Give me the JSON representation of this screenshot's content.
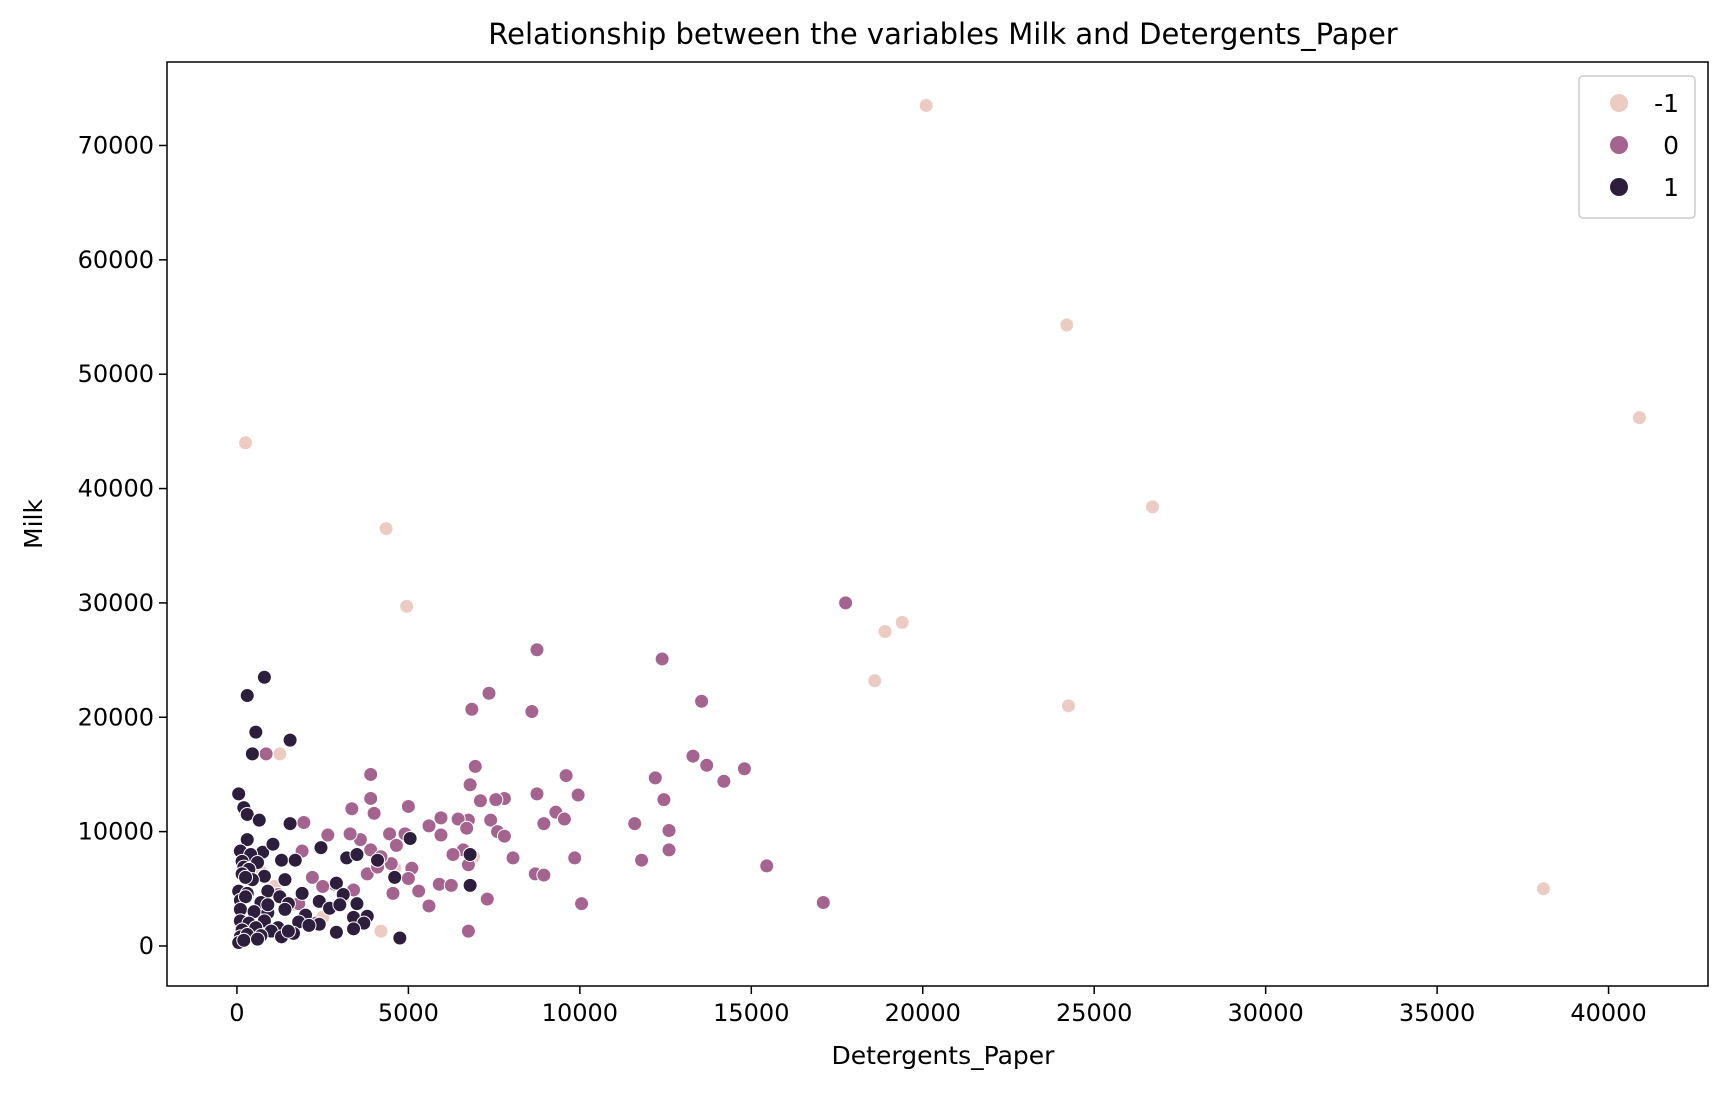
{
  "chart_data": {
    "type": "scatter",
    "title": "Relationship between the variables Milk and Detergents_Paper",
    "xlabel": "Detergents_Paper",
    "ylabel": "Milk",
    "xlim": [
      -2040,
      42900
    ],
    "ylim": [
      -3500,
      77300
    ],
    "xticks": [
      0,
      5000,
      10000,
      15000,
      20000,
      25000,
      30000,
      35000,
      40000
    ],
    "yticks": [
      0,
      10000,
      20000,
      30000,
      40000,
      50000,
      60000,
      70000
    ],
    "grid": false,
    "legend": {
      "placement": "top-right",
      "entries": [
        {
          "label": "-1",
          "color": "#ebcbc2"
        },
        {
          "label": "0",
          "color": "#a5648f"
        },
        {
          "label": "1",
          "color": "#2d1e3e"
        }
      ]
    },
    "series": [
      {
        "name": "-1",
        "color": "#ebcbc2",
        "points": [
          [
            20100,
            73500
          ],
          [
            24200,
            54300
          ],
          [
            40900,
            46200
          ],
          [
            250,
            44000
          ],
          [
            26700,
            38400
          ],
          [
            4350,
            36500
          ],
          [
            4950,
            29700
          ],
          [
            19400,
            28300
          ],
          [
            18900,
            27500
          ],
          [
            18600,
            23200
          ],
          [
            24250,
            21000
          ],
          [
            1250,
            16800
          ],
          [
            38100,
            5000
          ],
          [
            4200,
            1300
          ],
          [
            850,
            16700
          ],
          [
            700,
            6500
          ],
          [
            1100,
            5200
          ],
          [
            3100,
            4300
          ],
          [
            6900,
            7800
          ],
          [
            4600,
            6800
          ],
          [
            2500,
            2500
          ],
          [
            1700,
            3600
          ]
        ]
      },
      {
        "name": "0",
        "color": "#a5648f",
        "points": [
          [
            17750,
            30000
          ],
          [
            8750,
            25900
          ],
          [
            12400,
            25100
          ],
          [
            7350,
            22100
          ],
          [
            13550,
            21400
          ],
          [
            6850,
            20700
          ],
          [
            8600,
            20500
          ],
          [
            850,
            16800
          ],
          [
            13300,
            16600
          ],
          [
            13700,
            15800
          ],
          [
            6950,
            15700
          ],
          [
            14800,
            15500
          ],
          [
            3900,
            15000
          ],
          [
            9600,
            14900
          ],
          [
            12200,
            14700
          ],
          [
            14200,
            14400
          ],
          [
            6800,
            14100
          ],
          [
            8750,
            13300
          ],
          [
            9950,
            13200
          ],
          [
            3900,
            12900
          ],
          [
            7800,
            12900
          ],
          [
            12450,
            12800
          ],
          [
            7550,
            12800
          ],
          [
            7100,
            12700
          ],
          [
            5000,
            12200
          ],
          [
            3350,
            12000
          ],
          [
            9300,
            11700
          ],
          [
            4000,
            11600
          ],
          [
            6750,
            11000
          ],
          [
            7400,
            11000
          ],
          [
            9550,
            11100
          ],
          [
            5950,
            11200
          ],
          [
            6450,
            11100
          ],
          [
            11600,
            10700
          ],
          [
            8950,
            10700
          ],
          [
            1950,
            10800
          ],
          [
            7600,
            10000
          ],
          [
            12600,
            10100
          ],
          [
            5600,
            10500
          ],
          [
            6700,
            10300
          ],
          [
            2650,
            9700
          ],
          [
            3600,
            9300
          ],
          [
            4450,
            9800
          ],
          [
            4900,
            9800
          ],
          [
            5950,
            9700
          ],
          [
            7800,
            9600
          ],
          [
            12600,
            8400
          ],
          [
            4650,
            8800
          ],
          [
            6600,
            8400
          ],
          [
            6300,
            8000
          ],
          [
            8050,
            7700
          ],
          [
            9850,
            7700
          ],
          [
            11800,
            7500
          ],
          [
            4500,
            7200
          ],
          [
            15450,
            7000
          ],
          [
            5100,
            6800
          ],
          [
            6750,
            7100
          ],
          [
            2200,
            6000
          ],
          [
            3800,
            6300
          ],
          [
            5000,
            5900
          ],
          [
            5900,
            5400
          ],
          [
            6250,
            5300
          ],
          [
            8700,
            6300
          ],
          [
            8950,
            6200
          ],
          [
            5300,
            4800
          ],
          [
            3400,
            4900
          ],
          [
            4550,
            4600
          ],
          [
            1800,
            3700
          ],
          [
            2300,
            2000
          ],
          [
            7300,
            4100
          ],
          [
            5600,
            3500
          ],
          [
            10050,
            3700
          ],
          [
            17100,
            3800
          ],
          [
            6750,
            1300
          ],
          [
            1200,
            4500
          ],
          [
            2850,
            5400
          ],
          [
            3900,
            8400
          ],
          [
            1900,
            8300
          ],
          [
            4200,
            7800
          ],
          [
            3300,
            9800
          ],
          [
            2500,
            5200
          ],
          [
            4100,
            6900
          ]
        ]
      },
      {
        "name": "1",
        "color": "#2d1e3e",
        "points": [
          [
            800,
            23500
          ],
          [
            300,
            21900
          ],
          [
            550,
            18700
          ],
          [
            1550,
            18000
          ],
          [
            450,
            16800
          ],
          [
            50,
            13300
          ],
          [
            200,
            12100
          ],
          [
            300,
            11500
          ],
          [
            650,
            11000
          ],
          [
            1550,
            10700
          ],
          [
            300,
            9300
          ],
          [
            750,
            8200
          ],
          [
            1050,
            8900
          ],
          [
            100,
            8300
          ],
          [
            400,
            8000
          ],
          [
            2450,
            8600
          ],
          [
            3200,
            7700
          ],
          [
            3500,
            8000
          ],
          [
            4100,
            7500
          ],
          [
            5050,
            9400
          ],
          [
            6800,
            8000
          ],
          [
            150,
            7400
          ],
          [
            600,
            7300
          ],
          [
            1300,
            7500
          ],
          [
            1700,
            7500
          ],
          [
            200,
            6900
          ],
          [
            350,
            6700
          ],
          [
            800,
            6100
          ],
          [
            150,
            6300
          ],
          [
            450,
            5800
          ],
          [
            1400,
            5800
          ],
          [
            2900,
            5500
          ],
          [
            4600,
            6000
          ],
          [
            6800,
            5300
          ],
          [
            50,
            4800
          ],
          [
            300,
            4600
          ],
          [
            900,
            4800
          ],
          [
            1250,
            4300
          ],
          [
            1900,
            4600
          ],
          [
            3100,
            4500
          ],
          [
            100,
            4000
          ],
          [
            250,
            4300
          ],
          [
            700,
            3800
          ],
          [
            1500,
            3700
          ],
          [
            2400,
            3900
          ],
          [
            3500,
            3700
          ],
          [
            100,
            3200
          ],
          [
            500,
            3000
          ],
          [
            900,
            2900
          ],
          [
            1400,
            3200
          ],
          [
            2000,
            2700
          ],
          [
            2700,
            3300
          ],
          [
            3400,
            2500
          ],
          [
            3800,
            2600
          ],
          [
            100,
            2200
          ],
          [
            350,
            2000
          ],
          [
            800,
            2200
          ],
          [
            1200,
            1600
          ],
          [
            1800,
            2100
          ],
          [
            2400,
            1900
          ],
          [
            3700,
            2000
          ],
          [
            150,
            1400
          ],
          [
            550,
            1600
          ],
          [
            1000,
            1300
          ],
          [
            1650,
            1100
          ],
          [
            2900,
            1200
          ],
          [
            4750,
            700
          ],
          [
            100,
            800
          ],
          [
            300,
            1000
          ],
          [
            700,
            900
          ],
          [
            1300,
            800
          ],
          [
            2100,
            1800
          ],
          [
            3000,
            3600
          ],
          [
            50,
            300
          ],
          [
            200,
            500
          ],
          [
            600,
            600
          ],
          [
            1500,
            1300
          ],
          [
            900,
            3600
          ],
          [
            3400,
            1500
          ],
          [
            250,
            6000
          ]
        ]
      }
    ]
  }
}
